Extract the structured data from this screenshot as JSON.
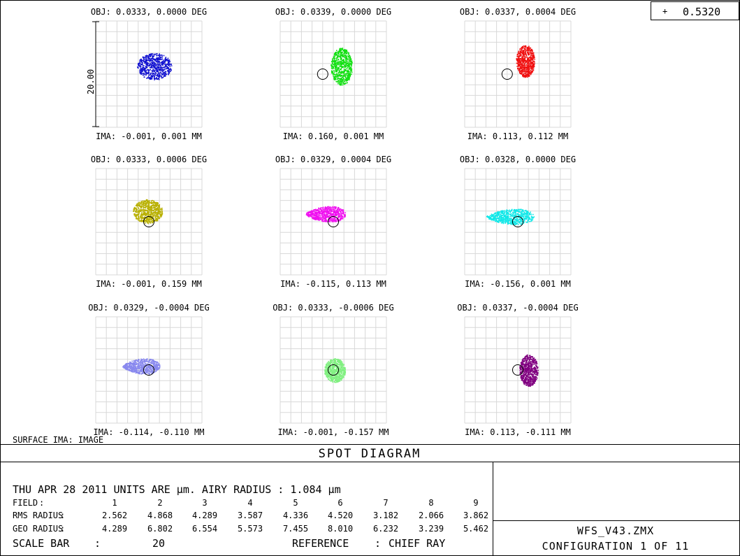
{
  "wavelength_box": {
    "symbol": "+",
    "value": "0.5320"
  },
  "surface_label": "SURFACE IMA: IMAGE",
  "scale_bar_label": "20.00",
  "chart_data": {
    "type": "scatter",
    "title": "SPOT DIAGRAM",
    "grid": true,
    "plot_range_um": 40,
    "airy_radius_um": 1.084,
    "fields": [
      {
        "obj": "OBJ: 0.0333, 0.0000 DEG",
        "ima": "IMA: -0.001, 0.001 MM",
        "color": "#1010d0",
        "spot": {
          "cx": 2,
          "cy": 3,
          "rx": 6.5,
          "ry": 5,
          "shape": "round"
        },
        "airy": null
      },
      {
        "obj": "OBJ: 0.0339, 0.0000 DEG",
        "ima": "IMA: 0.160, 0.001 MM",
        "color": "#10e010",
        "spot": {
          "cx": 3,
          "cy": 3,
          "rx": 4,
          "ry": 7,
          "shape": "round"
        },
        "airy": {
          "cx": -4,
          "cy": 0
        }
      },
      {
        "obj": "OBJ: 0.0337, 0.0004 DEG",
        "ima": "IMA: 0.113, 0.112 MM",
        "color": "#f01010",
        "spot": {
          "cx": 2.8,
          "cy": 5,
          "rx": 3.5,
          "ry": 6,
          "shape": "round"
        },
        "airy": {
          "cx": -4,
          "cy": 0
        }
      },
      {
        "obj": "OBJ: 0.0333, 0.0006 DEG",
        "ima": "IMA: -0.001, 0.159 MM",
        "color": "#b8b000",
        "spot": {
          "cx": -0.5,
          "cy": 4,
          "rx": 5.5,
          "ry": 4.5,
          "shape": "round"
        },
        "airy": {
          "cx": 0,
          "cy": 0
        }
      },
      {
        "obj": "OBJ: 0.0329, 0.0004 DEG",
        "ima": "IMA: -0.115, 0.113 MM",
        "color": "#f010f0",
        "spot": {
          "cx": -3,
          "cy": 3,
          "rx": 7.5,
          "ry": 3.5,
          "shape": "tear"
        },
        "airy": {
          "cx": 0,
          "cy": 0
        }
      },
      {
        "obj": "OBJ: 0.0328, 0.0000 DEG",
        "ima": "IMA: -0.156, 0.001 MM",
        "color": "#10e8e8",
        "spot": {
          "cx": -3,
          "cy": 2,
          "rx": 9,
          "ry": 3.5,
          "shape": "tear"
        },
        "airy": {
          "cx": 0,
          "cy": 0
        }
      },
      {
        "obj": "OBJ: 0.0329, -0.0004 DEG",
        "ima": "IMA: -0.114, -0.110 MM",
        "color": "#8888ee",
        "spot": {
          "cx": -3,
          "cy": 1.5,
          "rx": 7,
          "ry": 3.5,
          "shape": "tear"
        },
        "airy": {
          "cx": 0,
          "cy": 0
        }
      },
      {
        "obj": "OBJ: 0.0333, -0.0006 DEG",
        "ima": "IMA: -0.001, -0.157 MM",
        "color": "#80f080",
        "spot": {
          "cx": 0.5,
          "cy": 0,
          "rx": 4,
          "ry": 4.5,
          "shape": "round"
        },
        "airy": {
          "cx": 0,
          "cy": 0
        }
      },
      {
        "obj": "OBJ: 0.0337, -0.0004 DEG",
        "ima": "IMA: 0.113, -0.111 MM",
        "color": "#800080",
        "spot": {
          "cx": 4,
          "cy": 0,
          "rx": 3.5,
          "ry": 6,
          "shape": "round"
        },
        "airy": {
          "cx": 0,
          "cy": 0
        }
      }
    ]
  },
  "footer": {
    "title": "SPOT DIAGRAM",
    "info_line": "THU APR 28 2011   UNITS ARE µm.   AIRY RADIUS : 1.084 µm",
    "field_label": "FIELD",
    "colon": ":",
    "field_numbers": [
      "1",
      "2",
      "3",
      "4",
      "5",
      "6",
      "7",
      "8",
      "9"
    ],
    "rms_label": "RMS RADIUS",
    "rms_values": [
      "2.562",
      "4.868",
      "4.289",
      "3.587",
      "4.336",
      "4.520",
      "3.182",
      "2.066",
      "3.862"
    ],
    "geo_label": "GEO RADIUS",
    "geo_values": [
      "4.289",
      "6.802",
      "6.554",
      "5.573",
      "7.455",
      "8.010",
      "6.232",
      "3.239",
      "5.462"
    ],
    "scale_bar_label": "SCALE BAR",
    "scale_bar_value": "20",
    "reference_label": "REFERENCE",
    "reference_value": "CHIEF RAY",
    "file_name": "WFS_V43.ZMX",
    "configuration": "CONFIGURATION 1 OF 11"
  }
}
